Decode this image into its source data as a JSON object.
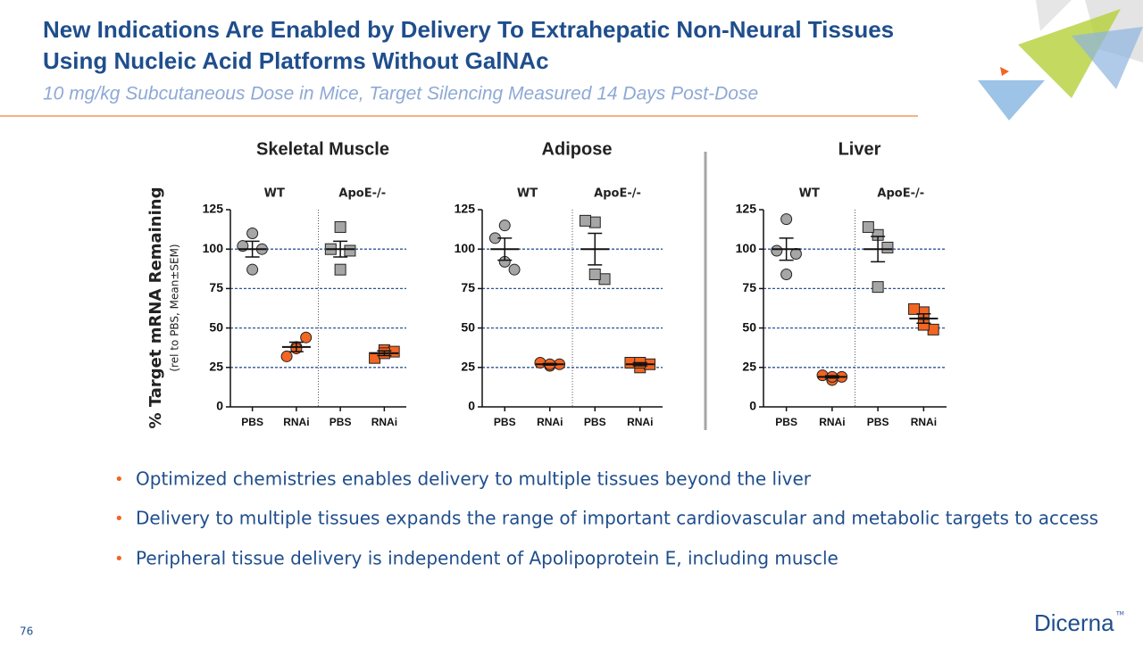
{
  "title": [
    "New Indications Are Enabled by Delivery To Extrahepatic Non-Neural Tissues",
    "Using Nucleic Acid Platforms Without GalNAc"
  ],
  "subtitle": "10 mg/kg Subcutaneous Dose in Mice, Target Silencing Measured 14 Days Post-Dose",
  "chart_data": [
    {
      "type": "dotplot",
      "title": "Skeletal Muscle",
      "ylabel": "% Target mRNA Remaining",
      "ylabel_note": "(rel to PBS, Mean±SEM)",
      "group_labels": [
        "WT",
        "ApoE-/-"
      ],
      "categories": [
        "PBS",
        "RNAi",
        "PBS",
        "RNAi"
      ],
      "values": [
        [
          110,
          102,
          100,
          87
        ],
        [
          38,
          32,
          44,
          37
        ],
        [
          114,
          100,
          99,
          87
        ],
        [
          36,
          31,
          35,
          34
        ]
      ],
      "means": [
        100,
        38,
        100,
        34
      ],
      "errors": [
        5,
        3,
        5,
        1.5
      ],
      "markers": [
        "circle",
        "circle",
        "square",
        "square"
      ],
      "colors": [
        "#a6a6a6",
        "#f26522",
        "#a6a6a6",
        "#f26522"
      ],
      "ylim": [
        0,
        125
      ],
      "yticks": [
        0,
        25,
        50,
        75,
        100,
        125
      ],
      "grid": true
    },
    {
      "type": "dotplot",
      "title": "Adipose",
      "group_labels": [
        "WT",
        "ApoE-/-"
      ],
      "categories": [
        "PBS",
        "RNAi",
        "PBS",
        "RNAi"
      ],
      "values": [
        [
          115,
          107,
          87,
          92
        ],
        [
          26,
          28,
          27,
          27
        ],
        [
          117,
          118,
          81,
          84
        ],
        [
          25,
          28,
          27,
          28
        ]
      ],
      "means": [
        100,
        27,
        100,
        27
      ],
      "errors": [
        7,
        0.5,
        10,
        1
      ],
      "markers": [
        "circle",
        "circle",
        "square",
        "square"
      ],
      "colors": [
        "#a6a6a6",
        "#f26522",
        "#a6a6a6",
        "#f26522"
      ],
      "ylim": [
        0,
        125
      ],
      "yticks": [
        0,
        25,
        50,
        75,
        100,
        125
      ],
      "grid": true
    },
    {
      "type": "dotplot",
      "title": "Liver",
      "group_labels": [
        "WT",
        "ApoE-/-"
      ],
      "categories": [
        "PBS",
        "RNAi",
        "PBS",
        "RNAi"
      ],
      "values": [
        [
          119,
          99,
          97,
          84
        ],
        [
          17,
          20,
          19,
          19
        ],
        [
          109,
          114,
          101,
          76
        ],
        [
          60,
          62,
          49,
          52
        ]
      ],
      "means": [
        100,
        19,
        100,
        56
      ],
      "errors": [
        7,
        0.7,
        8,
        3
      ],
      "markers": [
        "circle",
        "circle",
        "square",
        "square"
      ],
      "colors": [
        "#a6a6a6",
        "#f26522",
        "#a6a6a6",
        "#f26522"
      ],
      "ylim": [
        0,
        125
      ],
      "yticks": [
        0,
        25,
        50,
        75,
        100,
        125
      ],
      "grid": true
    }
  ],
  "bullets": [
    "Optimized chemistries enables delivery to multiple tissues beyond the liver",
    "Delivery to multiple tissues expands the range of important cardiovascular and metabolic targets to access",
    "Peripheral tissue delivery is independent of Apolipoprotein E, including muscle"
  ],
  "page_number": "76",
  "logo": "Dicerna",
  "logo_mark": "TM"
}
